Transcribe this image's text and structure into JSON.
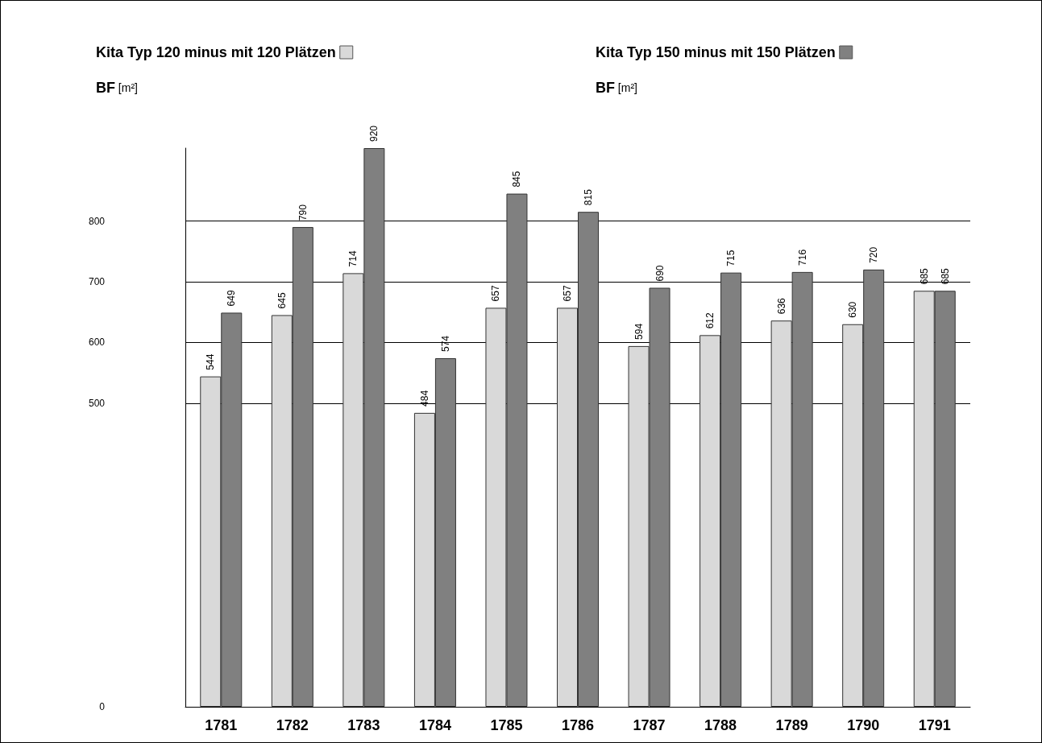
{
  "chart_data": {
    "type": "bar",
    "categories": [
      "1781",
      "1782",
      "1783",
      "1784",
      "1785",
      "1786",
      "1787",
      "1788",
      "1789",
      "1790",
      "1791"
    ],
    "series": [
      {
        "name": "Kita Typ 120 minus mit 120 Plätzen",
        "color": "#d9d9d9",
        "values": [
          544,
          645,
          714,
          484,
          657,
          657,
          594,
          612,
          636,
          630,
          685
        ]
      },
      {
        "name": "Kita Typ 150 minus mit 150 Plätzen",
        "color": "#808080",
        "values": [
          649,
          790,
          920,
          574,
          845,
          815,
          690,
          715,
          716,
          720,
          685
        ]
      }
    ],
    "legend_title": "BF [m²]",
    "legend": "top",
    "ylim": [
      0,
      920
    ],
    "yticks": [
      0,
      500,
      600,
      700,
      800
    ],
    "grid": "y",
    "data_labels": true
  }
}
